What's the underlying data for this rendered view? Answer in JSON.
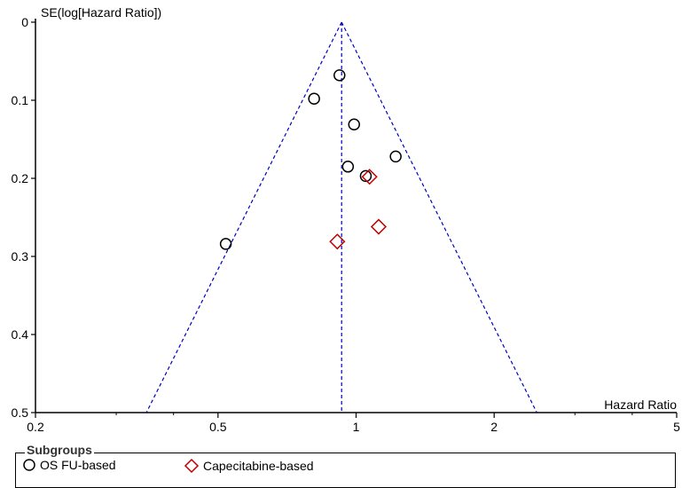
{
  "chart_data": {
    "type": "scatter",
    "subtype": "funnel-plot",
    "title": "",
    "xlabel": "Hazard Ratio",
    "ylabel": "SE(log[Hazard Ratio])",
    "x_scale": "log",
    "xlim": [
      0.2,
      5
    ],
    "ylim": [
      0,
      0.5
    ],
    "y_reversed": true,
    "x_ticks": [
      0.2,
      0.5,
      1,
      2,
      5
    ],
    "x_tick_labels": [
      "0.2",
      "0.5",
      "1",
      "2",
      "5"
    ],
    "y_ticks": [
      0,
      0.1,
      0.2,
      0.3,
      0.4,
      0.5
    ],
    "y_tick_labels": [
      "0",
      "0.1",
      "0.2",
      "0.3",
      "0.4",
      "0.5"
    ],
    "pooled_estimate": 0.93,
    "funnel_apex_se": 0,
    "funnel_bottom_se": 0.5,
    "grid": false,
    "legend_placement": "bottom",
    "legend_title": "Subgroups",
    "series": [
      {
        "name": "OS FU-based",
        "marker": "circle",
        "color": "#000000",
        "points": [
          {
            "x": 0.92,
            "y": 0.068
          },
          {
            "x": 0.81,
            "y": 0.098
          },
          {
            "x": 0.99,
            "y": 0.131
          },
          {
            "x": 1.22,
            "y": 0.172
          },
          {
            "x": 0.96,
            "y": 0.185
          },
          {
            "x": 1.05,
            "y": 0.197
          },
          {
            "x": 0.52,
            "y": 0.284
          }
        ]
      },
      {
        "name": "Capecitabine-based",
        "marker": "diamond",
        "color": "#c00000",
        "points": [
          {
            "x": 1.07,
            "y": 0.198
          },
          {
            "x": 1.12,
            "y": 0.262
          },
          {
            "x": 0.91,
            "y": 0.281
          }
        ]
      }
    ],
    "line_color": "#0000c0"
  }
}
